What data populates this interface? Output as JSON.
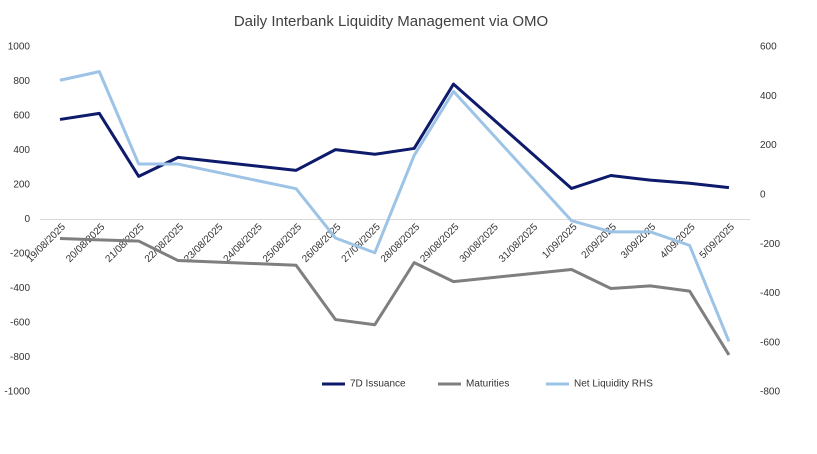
{
  "chart_data": {
    "type": "line",
    "title": "Daily Interbank Liquidity Management via OMO",
    "categories": [
      "19/08/2025",
      "20/08/2025",
      "21/08/2025",
      "22/08/2025",
      "23/08/2025",
      "24/08/2025",
      "25/08/2025",
      "26/08/2025",
      "27/08/2025",
      "28/08/2025",
      "29/08/2025",
      "30/08/2025",
      "31/08/2025",
      "1/09/2025",
      "2/09/2025",
      "3/09/2025",
      "4/09/2025",
      "5/09/2025"
    ],
    "series": [
      {
        "name": "7D Issuance",
        "color": "#0e1a6b",
        "values": [
          580,
          615,
          250,
          360,
          null,
          null,
          285,
          405,
          378,
          412,
          785,
          null,
          null,
          180,
          255,
          228,
          210,
          185
        ]
      },
      {
        "name": "Maturities",
        "color": "#7f7f7f",
        "values": [
          -110,
          -118,
          -125,
          -238,
          null,
          null,
          -265,
          -580,
          -610,
          -250,
          -360,
          null,
          null,
          -290,
          -400,
          -385,
          -415,
          -785
        ]
      },
      {
        "name": "Net Liquidity RHS",
        "color": "#9dc3e6",
        "axis": "y2",
        "values": [
          465,
          500,
          125,
          125,
          null,
          null,
          25,
          -175,
          -235,
          160,
          420,
          null,
          null,
          -105,
          -150,
          -150,
          -205,
          -595
        ]
      }
    ],
    "ylim": [
      -1000,
      1000
    ],
    "yticks": [
      -1000,
      -800,
      -600,
      -400,
      -200,
      0,
      200,
      400,
      600,
      800,
      1000
    ],
    "y2lim": [
      -800,
      600
    ],
    "y2ticks": [
      -800,
      -600,
      -400,
      -200,
      0,
      200,
      400,
      600
    ],
    "span_gaps": true,
    "grid": false,
    "legend": "bottom"
  }
}
